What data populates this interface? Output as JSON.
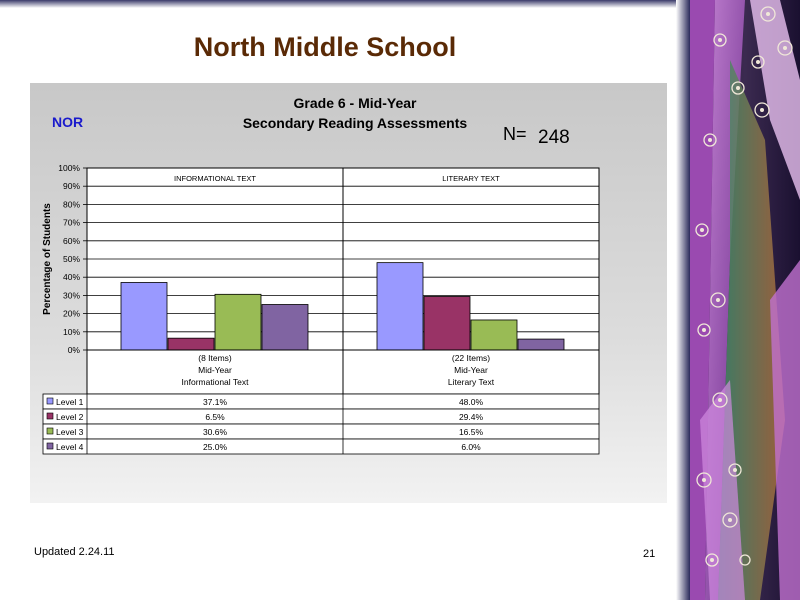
{
  "slide": {
    "title": "North Middle School",
    "school_code": "NOR",
    "n_label": "N=",
    "n_value": "248",
    "footer_left": "Updated  2.24.11",
    "page_number": "21"
  },
  "chart_data": {
    "type": "bar",
    "title": "Grade 6 - Mid-Year",
    "subtitle": "Secondary Reading Assessments",
    "ylabel": "Percentage of Students",
    "ylim": [
      0,
      100
    ],
    "yticks": [
      "0%",
      "10%",
      "20%",
      "30%",
      "40%",
      "50%",
      "60%",
      "70%",
      "80%",
      "90%",
      "100%"
    ],
    "grid": true,
    "groups": [
      {
        "header": "INFORMATIONAL TEXT",
        "label_lines": [
          "(8 Items)",
          "Mid-Year",
          "Informational Text"
        ]
      },
      {
        "header": "LITERARY TEXT",
        "label_lines": [
          "(22 Items)",
          "Mid-Year",
          "Literary Text"
        ]
      }
    ],
    "series": [
      {
        "name": "Level 1",
        "color": "#9999ff",
        "values": [
          37.1,
          48.0
        ],
        "labels": [
          "37.1%",
          "48.0%"
        ]
      },
      {
        "name": "Level 2",
        "color": "#993366",
        "values": [
          6.5,
          29.4
        ],
        "labels": [
          "6.5%",
          "29.4%"
        ]
      },
      {
        "name": "Level 3",
        "color": "#99bb55",
        "values": [
          30.6,
          16.5
        ],
        "labels": [
          "30.6%",
          "16.5%"
        ]
      },
      {
        "name": "Level 4",
        "color": "#8064a2",
        "values": [
          25.0,
          6.0
        ],
        "labels": [
          "25.0%",
          "6.0%"
        ]
      }
    ]
  }
}
